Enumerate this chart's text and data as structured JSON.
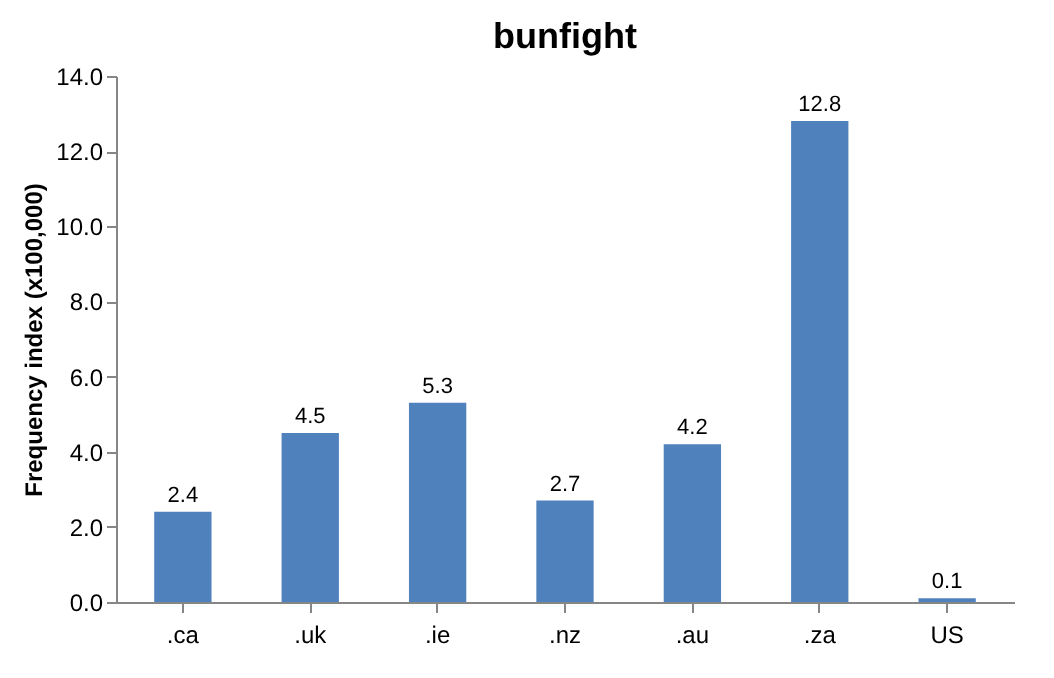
{
  "chart_data": {
    "type": "bar",
    "title": "bunfight",
    "ylabel": "Frequency index (x100,000)",
    "categories": [
      ".ca",
      ".uk",
      ".ie",
      ".nz",
      ".au",
      ".za",
      "US"
    ],
    "values": [
      2.4,
      4.5,
      5.3,
      2.7,
      4.2,
      12.8,
      0.1
    ],
    "color": "#4f81bd",
    "ylim": [
      0,
      14
    ],
    "yticks": [
      {
        "value": 0,
        "label": "0.0"
      },
      {
        "value": 2,
        "label": "2.0"
      },
      {
        "value": 4,
        "label": "4.0"
      },
      {
        "value": 6,
        "label": "6.0"
      },
      {
        "value": 8,
        "label": "8.0"
      },
      {
        "value": 10,
        "label": "10.0"
      },
      {
        "value": 12,
        "label": "12.0"
      },
      {
        "value": 14,
        "label": "14.0"
      }
    ],
    "data_labels": true,
    "grid": false
  }
}
